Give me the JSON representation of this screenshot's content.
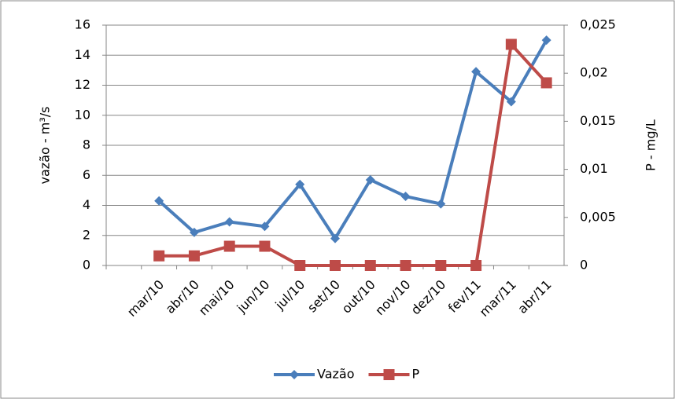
{
  "chart_data": {
    "type": "line",
    "categories": [
      null,
      "mar/10",
      "abr/10",
      "mai/10",
      "jun/10",
      "jul/10",
      "set/10",
      "out/10",
      "nov/10",
      "dez/10",
      "fev/11",
      "mar/11",
      "abr/11"
    ],
    "series": [
      {
        "name": "Vazão",
        "color": "#4a7ebb",
        "marker": "diamond",
        "values": [
          null,
          4.3,
          2.2,
          2.9,
          2.6,
          5.4,
          1.8,
          5.7,
          4.6,
          4.1,
          12.9,
          10.9,
          15.0
        ]
      },
      {
        "name": "P",
        "color": "#be4b48",
        "marker": "square",
        "axis": "y2",
        "values": [
          null,
          0.001,
          0.001,
          0.002,
          0.002,
          0,
          0,
          0,
          0,
          0,
          0,
          0.023,
          0.019
        ]
      }
    ],
    "ylabel": "vazão - m³/s",
    "y2label": "P - mg/L",
    "ylim": [
      0,
      16
    ],
    "yticks": [
      0,
      2,
      4,
      6,
      8,
      10,
      12,
      14,
      16
    ],
    "y2lim": [
      0,
      0.025
    ],
    "y2ticks": [
      0,
      {
        "value": 0.005,
        "label": "0,005"
      },
      {
        "value": 0.01,
        "label": "0,01"
      },
      {
        "value": 0.015,
        "label": "0,015"
      },
      {
        "value": 0.02,
        "label": "0,02"
      },
      {
        "value": 0.025,
        "label": "0,025"
      }
    ],
    "grid": true,
    "legend": "bottom"
  }
}
